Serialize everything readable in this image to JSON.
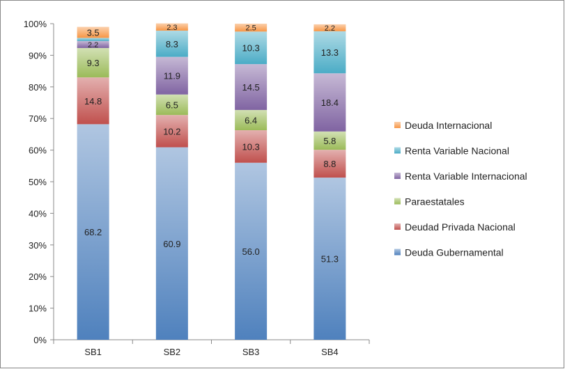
{
  "chart_data": {
    "type": "bar",
    "stacked": true,
    "percent": true,
    "categories": [
      "SB1",
      "SB2",
      "SB3",
      "SB4"
    ],
    "series": [
      {
        "name": "Deuda Gubernamental",
        "values": [
          68.2,
          60.9,
          56.0,
          51.3
        ],
        "labels": [
          "68.2",
          "60.9",
          "56.0",
          "51.3"
        ],
        "color": "#4f81bd"
      },
      {
        "name": "Deudad Privada Nacional",
        "values": [
          14.8,
          10.2,
          10.3,
          8.8
        ],
        "labels": [
          "14.8",
          "10.2",
          "10.3",
          "8.8"
        ],
        "color": "#c0504d"
      },
      {
        "name": "Paraestatales",
        "values": [
          9.3,
          6.5,
          6.4,
          5.8
        ],
        "labels": [
          "9.3",
          "6.5",
          "6.4",
          "5.8"
        ],
        "color": "#9bbb59"
      },
      {
        "name": "Renta Variable Internacional",
        "values": [
          2.2,
          11.9,
          14.5,
          18.4
        ],
        "labels": [
          "2.2",
          "11.9",
          "14.5",
          "18.4"
        ],
        "color": "#8064a2"
      },
      {
        "name": "Renta Variable Nacional",
        "values": [
          1.0,
          8.3,
          10.3,
          13.3
        ],
        "labels": [
          "",
          "8.3",
          "10.3",
          "13.3"
        ],
        "color": "#4bacc6"
      },
      {
        "name": "Deuda Internacional",
        "values": [
          3.5,
          2.3,
          2.5,
          2.2
        ],
        "labels": [
          "3.5",
          "2.3",
          "2.5",
          "2.2"
        ],
        "color": "#f79646"
      }
    ],
    "yticks": [
      "0%",
      "10%",
      "20%",
      "30%",
      "40%",
      "50%",
      "60%",
      "70%",
      "80%",
      "90%",
      "100%"
    ],
    "ylim": [
      0,
      100
    ],
    "title": "",
    "xlabel": "",
    "ylabel": "",
    "legend_position": "right",
    "legend_order": [
      "Deuda Internacional",
      "Renta Variable Nacional",
      "Renta Variable Internacional",
      "Paraestatales",
      "Deudad Privada Nacional",
      "Deuda Gubernamental"
    ],
    "grid": false
  }
}
